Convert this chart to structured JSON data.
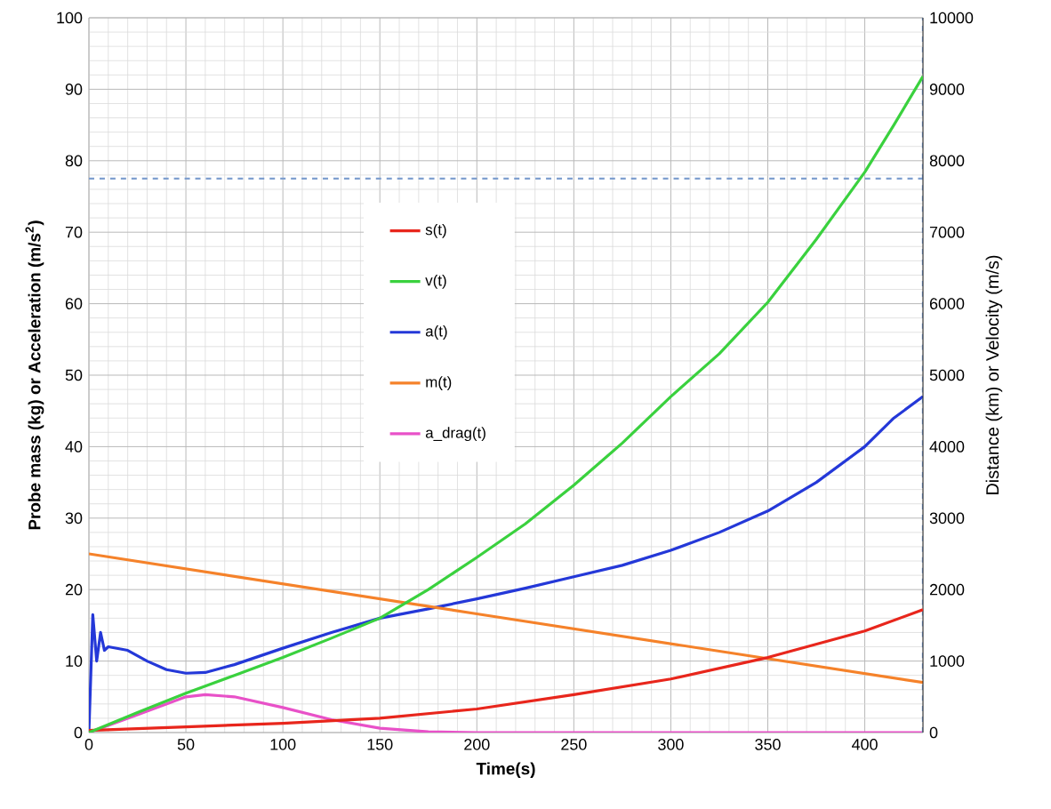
{
  "chart_data": {
    "type": "line",
    "xlabel": "Time(s)",
    "ylabel": "Probe mass (kg) or Acceleration (m/s$^{2}$)",
    "y2label": "Distance (km) or Velocity (m/s)",
    "xlim": [
      0,
      430
    ],
    "ylim": [
      0,
      100
    ],
    "y2lim": [
      0,
      10000
    ],
    "xticks": [
      0,
      50,
      100,
      150,
      200,
      250,
      300,
      350,
      400
    ],
    "yticks": [
      0,
      10,
      20,
      30,
      40,
      50,
      60,
      70,
      80,
      90,
      100
    ],
    "y2ticks": [
      0,
      1000,
      2000,
      3000,
      4000,
      5000,
      6000,
      7000,
      8000,
      9000,
      10000
    ],
    "grid": true,
    "legend": "center",
    "series": [
      {
        "name": "s(t)",
        "color": "#e8261c",
        "axis": "y2",
        "x": [
          0,
          50,
          100,
          150,
          200,
          250,
          300,
          350,
          400,
          430
        ],
        "values": [
          30,
          80,
          130,
          200,
          330,
          530,
          750,
          1050,
          1420,
          1720
        ]
      },
      {
        "name": "v(t)",
        "color": "#3ad13e",
        "axis": "y2",
        "x": [
          0,
          25,
          50,
          75,
          100,
          125,
          150,
          175,
          200,
          225,
          250,
          275,
          300,
          325,
          350,
          375,
          400,
          415,
          430
        ],
        "values": [
          0,
          280,
          550,
          800,
          1050,
          1320,
          1600,
          2000,
          2450,
          2920,
          3460,
          4050,
          4700,
          5300,
          6020,
          6900,
          7840,
          8500,
          9180
        ]
      },
      {
        "name": "a(t)",
        "color": "#2438d8",
        "axis": "y",
        "x": [
          0,
          2,
          4,
          6,
          8,
          10,
          20,
          30,
          40,
          50,
          60,
          75,
          100,
          125,
          150,
          175,
          200,
          225,
          250,
          275,
          300,
          325,
          350,
          375,
          400,
          415,
          430
        ],
        "values": [
          0,
          16.5,
          10,
          14,
          11.5,
          12,
          11.5,
          10,
          8.8,
          8.3,
          8.4,
          9.5,
          11.8,
          14,
          16,
          17.3,
          18.7,
          20.2,
          21.8,
          23.4,
          25.5,
          28,
          31,
          35,
          40,
          44,
          47
        ]
      },
      {
        "name": "m(t)",
        "color": "#f5822a",
        "axis": "y",
        "x": [
          0,
          200,
          430
        ],
        "values": [
          25,
          16.6,
          7
        ]
      },
      {
        "name": "a_drag(t)",
        "color": "#e851c8",
        "axis": "y",
        "x": [
          0,
          25,
          50,
          60,
          75,
          100,
          125,
          150,
          175,
          200,
          430
        ],
        "values": [
          0,
          2.5,
          5,
          5.3,
          5,
          3.5,
          1.8,
          0.6,
          0.1,
          0,
          0
        ]
      }
    ],
    "ref_lines": [
      {
        "axis": "y",
        "value": 77.5,
        "color": "#7f9fcf",
        "line_style": "dashed"
      },
      {
        "axis": "x",
        "value": 430,
        "color": "#7f9fcf",
        "line_style": "dashed"
      }
    ]
  }
}
